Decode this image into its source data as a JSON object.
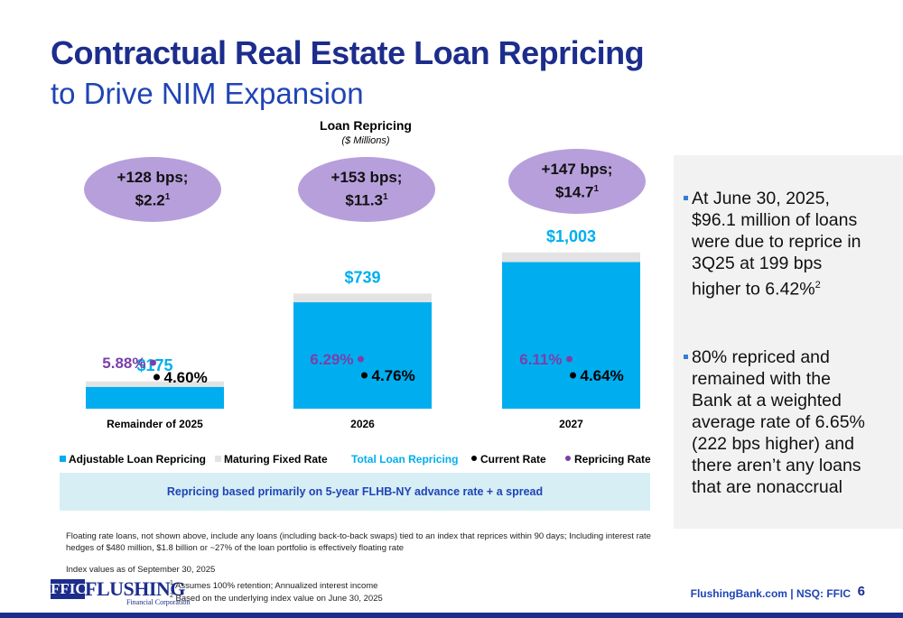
{
  "title": {
    "line1": "Contractual Real Estate Loan Repricing",
    "line2": "to Drive NIM Expansion"
  },
  "chart_data": {
    "type": "bar",
    "title": "Loan Repricing",
    "subtitle": "($ Millions)",
    "categories": [
      "Remainder of 2025",
      "2026",
      "2027"
    ],
    "totals": [
      175,
      739,
      1003
    ],
    "total_labels": [
      "$175",
      "$739",
      "$1,003"
    ],
    "series": [
      {
        "name": "Adjustable Loan Repricing",
        "color": "#00aeef",
        "values": [
          140,
          683,
          941
        ]
      },
      {
        "name": "Maturing Fixed Rate",
        "color": "#e3e3e3",
        "values": [
          35,
          56,
          62
        ]
      }
    ],
    "current_rate": {
      "name": "Current Rate",
      "labels": [
        "4.60%",
        "4.76%",
        "4.64%"
      ]
    },
    "repricing_rate": {
      "name": "Repricing Rate",
      "labels": [
        "5.88%",
        "6.29%",
        "6.11%"
      ]
    },
    "ellipses": [
      {
        "line1": "+128 bps;",
        "line2": "$2.2",
        "sup": "1"
      },
      {
        "line1": "+153 bps;",
        "line2": "$11.3",
        "sup": "1"
      },
      {
        "line1": "+147 bps;",
        "line2": "$14.7",
        "sup": "1"
      }
    ],
    "ylim": [
      0,
      1100
    ],
    "colors": {
      "adjustable": "#00aeef",
      "maturing": "#e3e3e3",
      "total_label": "#00aeef",
      "repricing": "#7b3fa8",
      "current": "#000000"
    }
  },
  "legend": {
    "adjustable": "Adjustable Loan Repricing",
    "maturing": "Maturing Fixed Rate",
    "total": "Total Loan Repricing",
    "current": "Current Rate",
    "repricing": "Repricing Rate"
  },
  "banner": "Repricing based primarily on 5-year FLHB-NY advance rate + a spread",
  "notes": {
    "floating": "Floating rate loans, not shown above, include any loans (including back-to-back swaps) tied to an index that reprices within 90 days; Including interest rate hedges of $480 million, $1.8 billion or ~27% of the loan portfolio is effectively floating rate",
    "index": "Index values as of September 30, 2025"
  },
  "bullets": [
    {
      "text": "At June 30, 2025, $96.1 million of loans were due to reprice in 3Q25 at 199 bps higher to 6.42%",
      "sup": "2"
    },
    {
      "text": "80% repriced and remained with the Bank at a weighted average rate of 6.65% (222 bps higher) and there aren’t any loans that are nonaccrual",
      "sup": ""
    }
  ],
  "footnotes": [
    {
      "num": "1",
      "text": "Assumes 100% retention; Annualized interest income"
    },
    {
      "num": "2",
      "text": "Based on the underlying index value on June 30, 2025"
    }
  ],
  "logo": {
    "box": "FFIC",
    "word": "FLUSHING",
    "sub": "Financial Corporation"
  },
  "footer": {
    "site": "FlushingBank.com  |  NSQ: FFIC",
    "page": "6"
  },
  "colors": {
    "brand": "#1c2d8c",
    "accent": "#1f44b5",
    "ellipse": "#b79fdc",
    "banner": "#d7eef5"
  }
}
